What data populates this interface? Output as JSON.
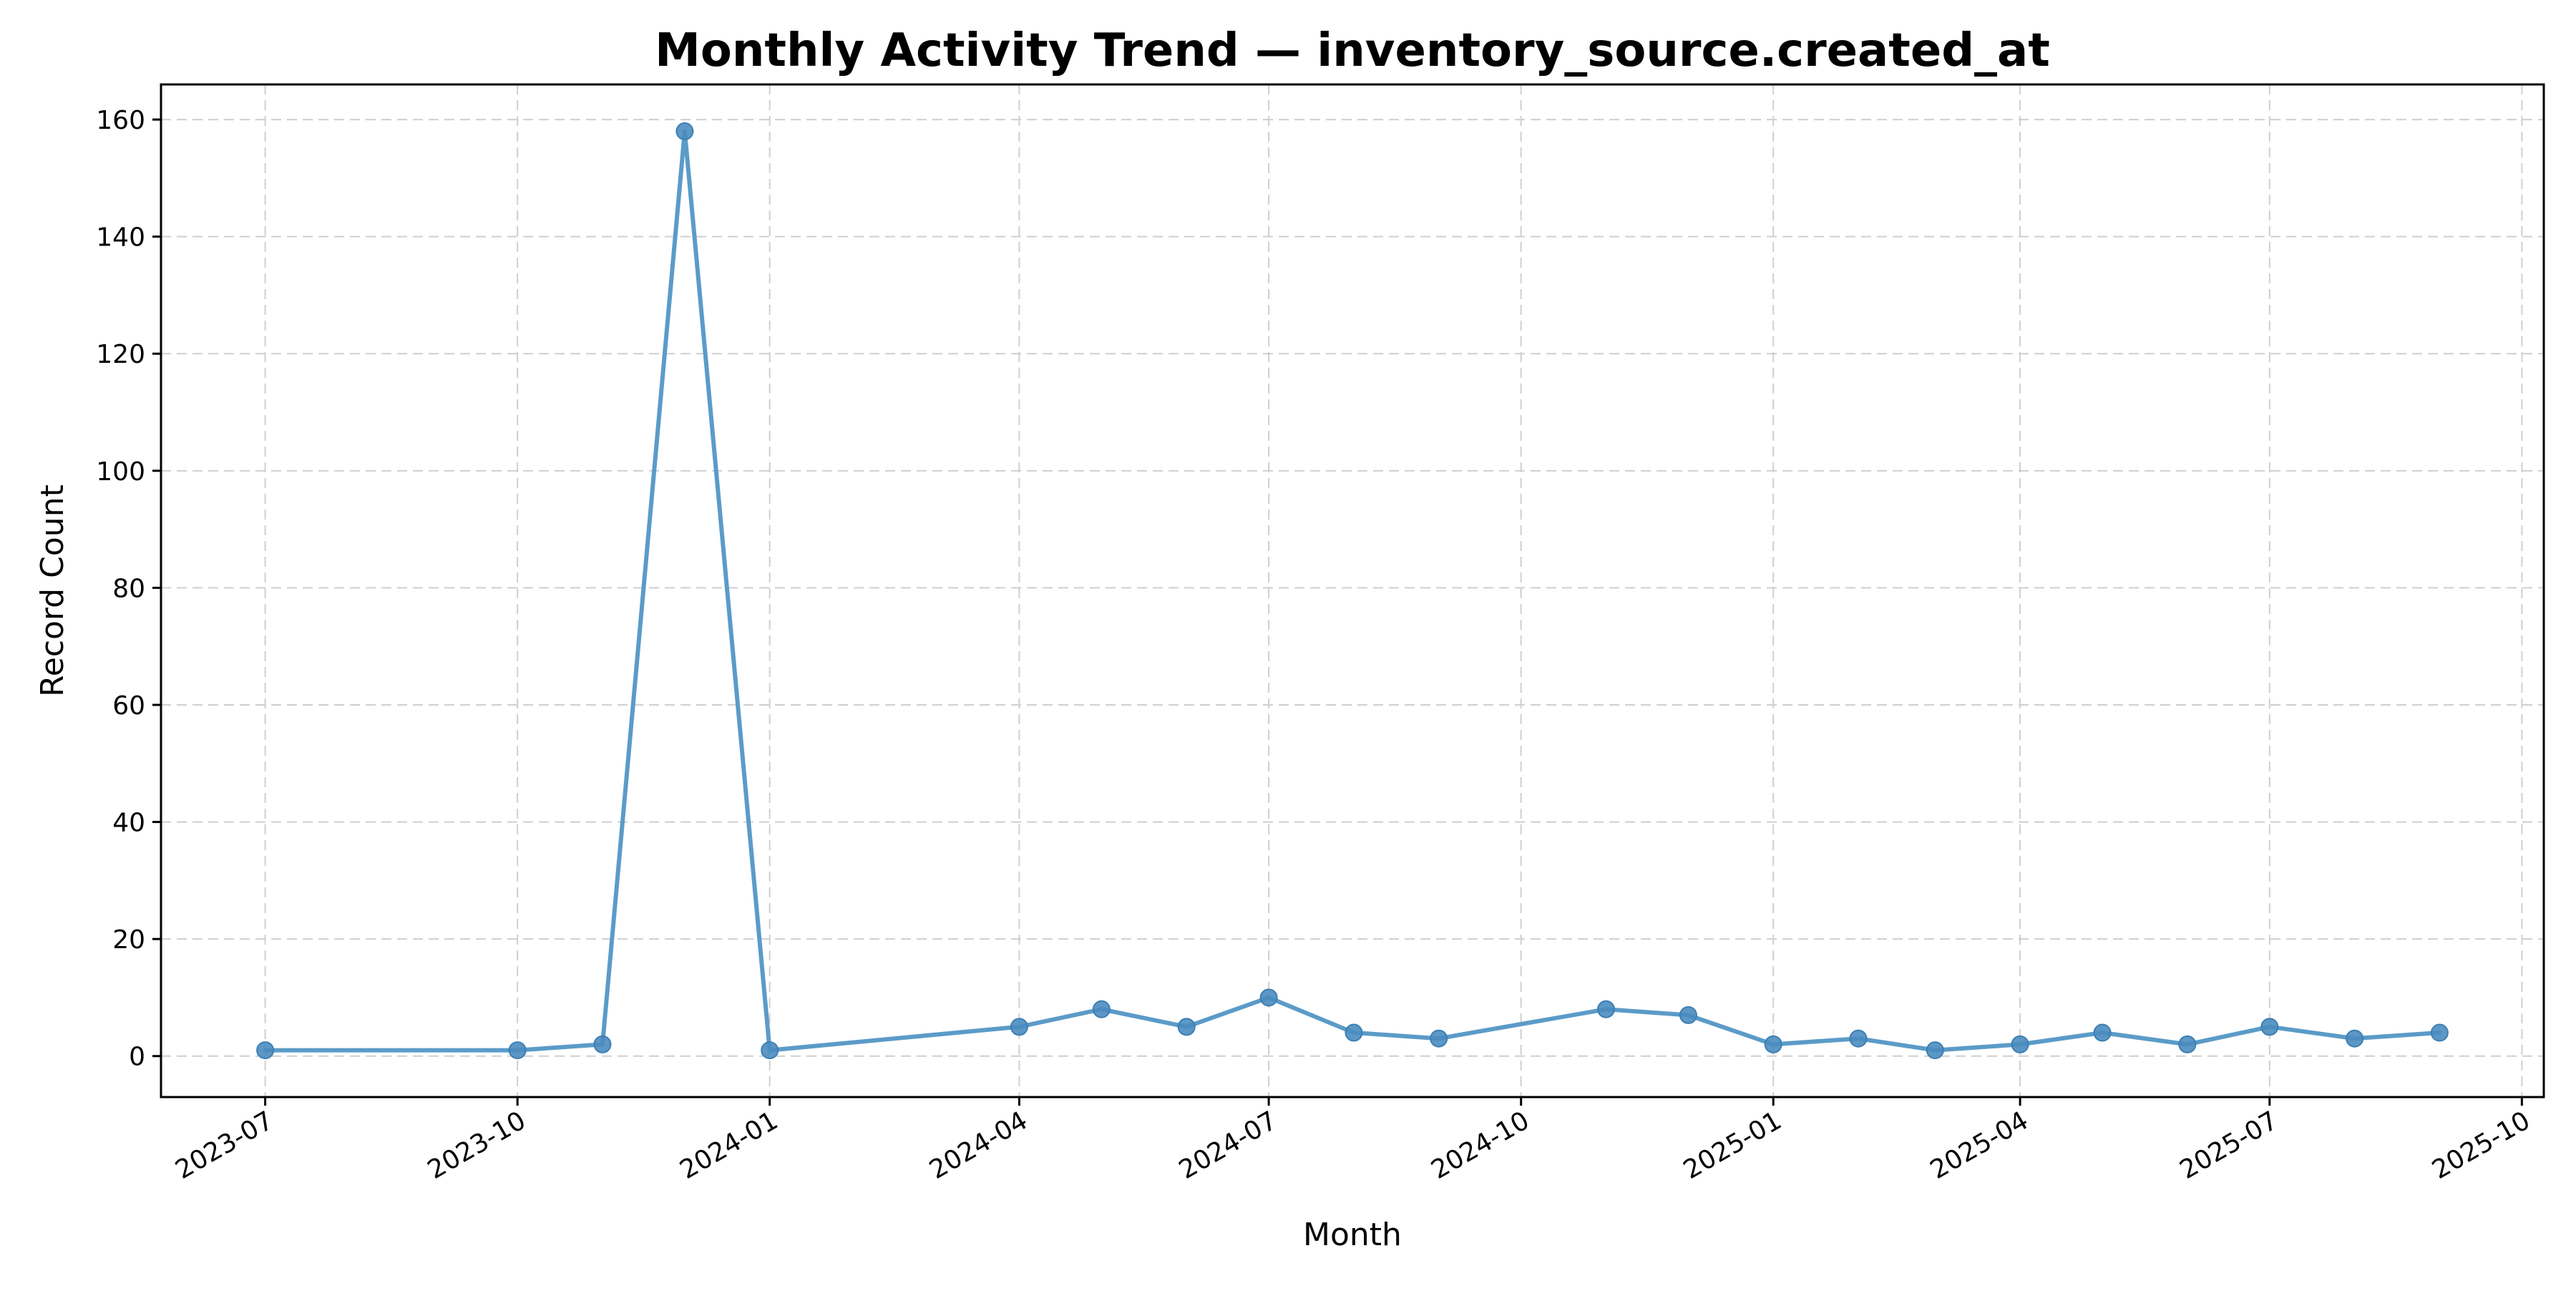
{
  "chart_data": {
    "type": "line",
    "title": "Monthly Activity Trend — inventory_source.created_at",
    "xlabel": "Month",
    "ylabel": "Record Count",
    "x_tick_labels": [
      "2023-07",
      "2023-10",
      "2024-01",
      "2024-04",
      "2024-07",
      "2024-10",
      "2025-01",
      "2025-04",
      "2025-07",
      "2025-10"
    ],
    "y_ticks": [
      0,
      20,
      40,
      60,
      80,
      100,
      120,
      140,
      160
    ],
    "ylim": [
      -7,
      166
    ],
    "xlim": [
      "2023-05-24",
      "2025-10-09"
    ],
    "grid": true,
    "legend": "none",
    "colors": {
      "line": "#5b9bc8",
      "marker": "#4a8cbf",
      "grid": "#cfcfcf"
    },
    "series": [
      {
        "x": [
          "2023-07-01",
          "2023-10-01",
          "2023-11-01",
          "2023-12-01",
          "2024-01-01",
          "2024-04-01",
          "2024-05-01",
          "2024-06-01",
          "2024-07-01",
          "2024-08-01",
          "2024-09-01",
          "2024-11-01",
          "2024-12-01",
          "2025-01-01",
          "2025-02-01",
          "2025-03-01",
          "2025-04-01",
          "2025-05-01",
          "2025-06-01",
          "2025-07-01",
          "2025-08-01",
          "2025-09-01"
        ],
        "values": [
          1,
          1,
          2,
          158,
          1,
          5,
          8,
          5,
          10,
          4,
          3,
          8,
          7,
          2,
          3,
          1,
          2,
          4,
          2,
          5,
          3,
          4
        ]
      }
    ]
  }
}
